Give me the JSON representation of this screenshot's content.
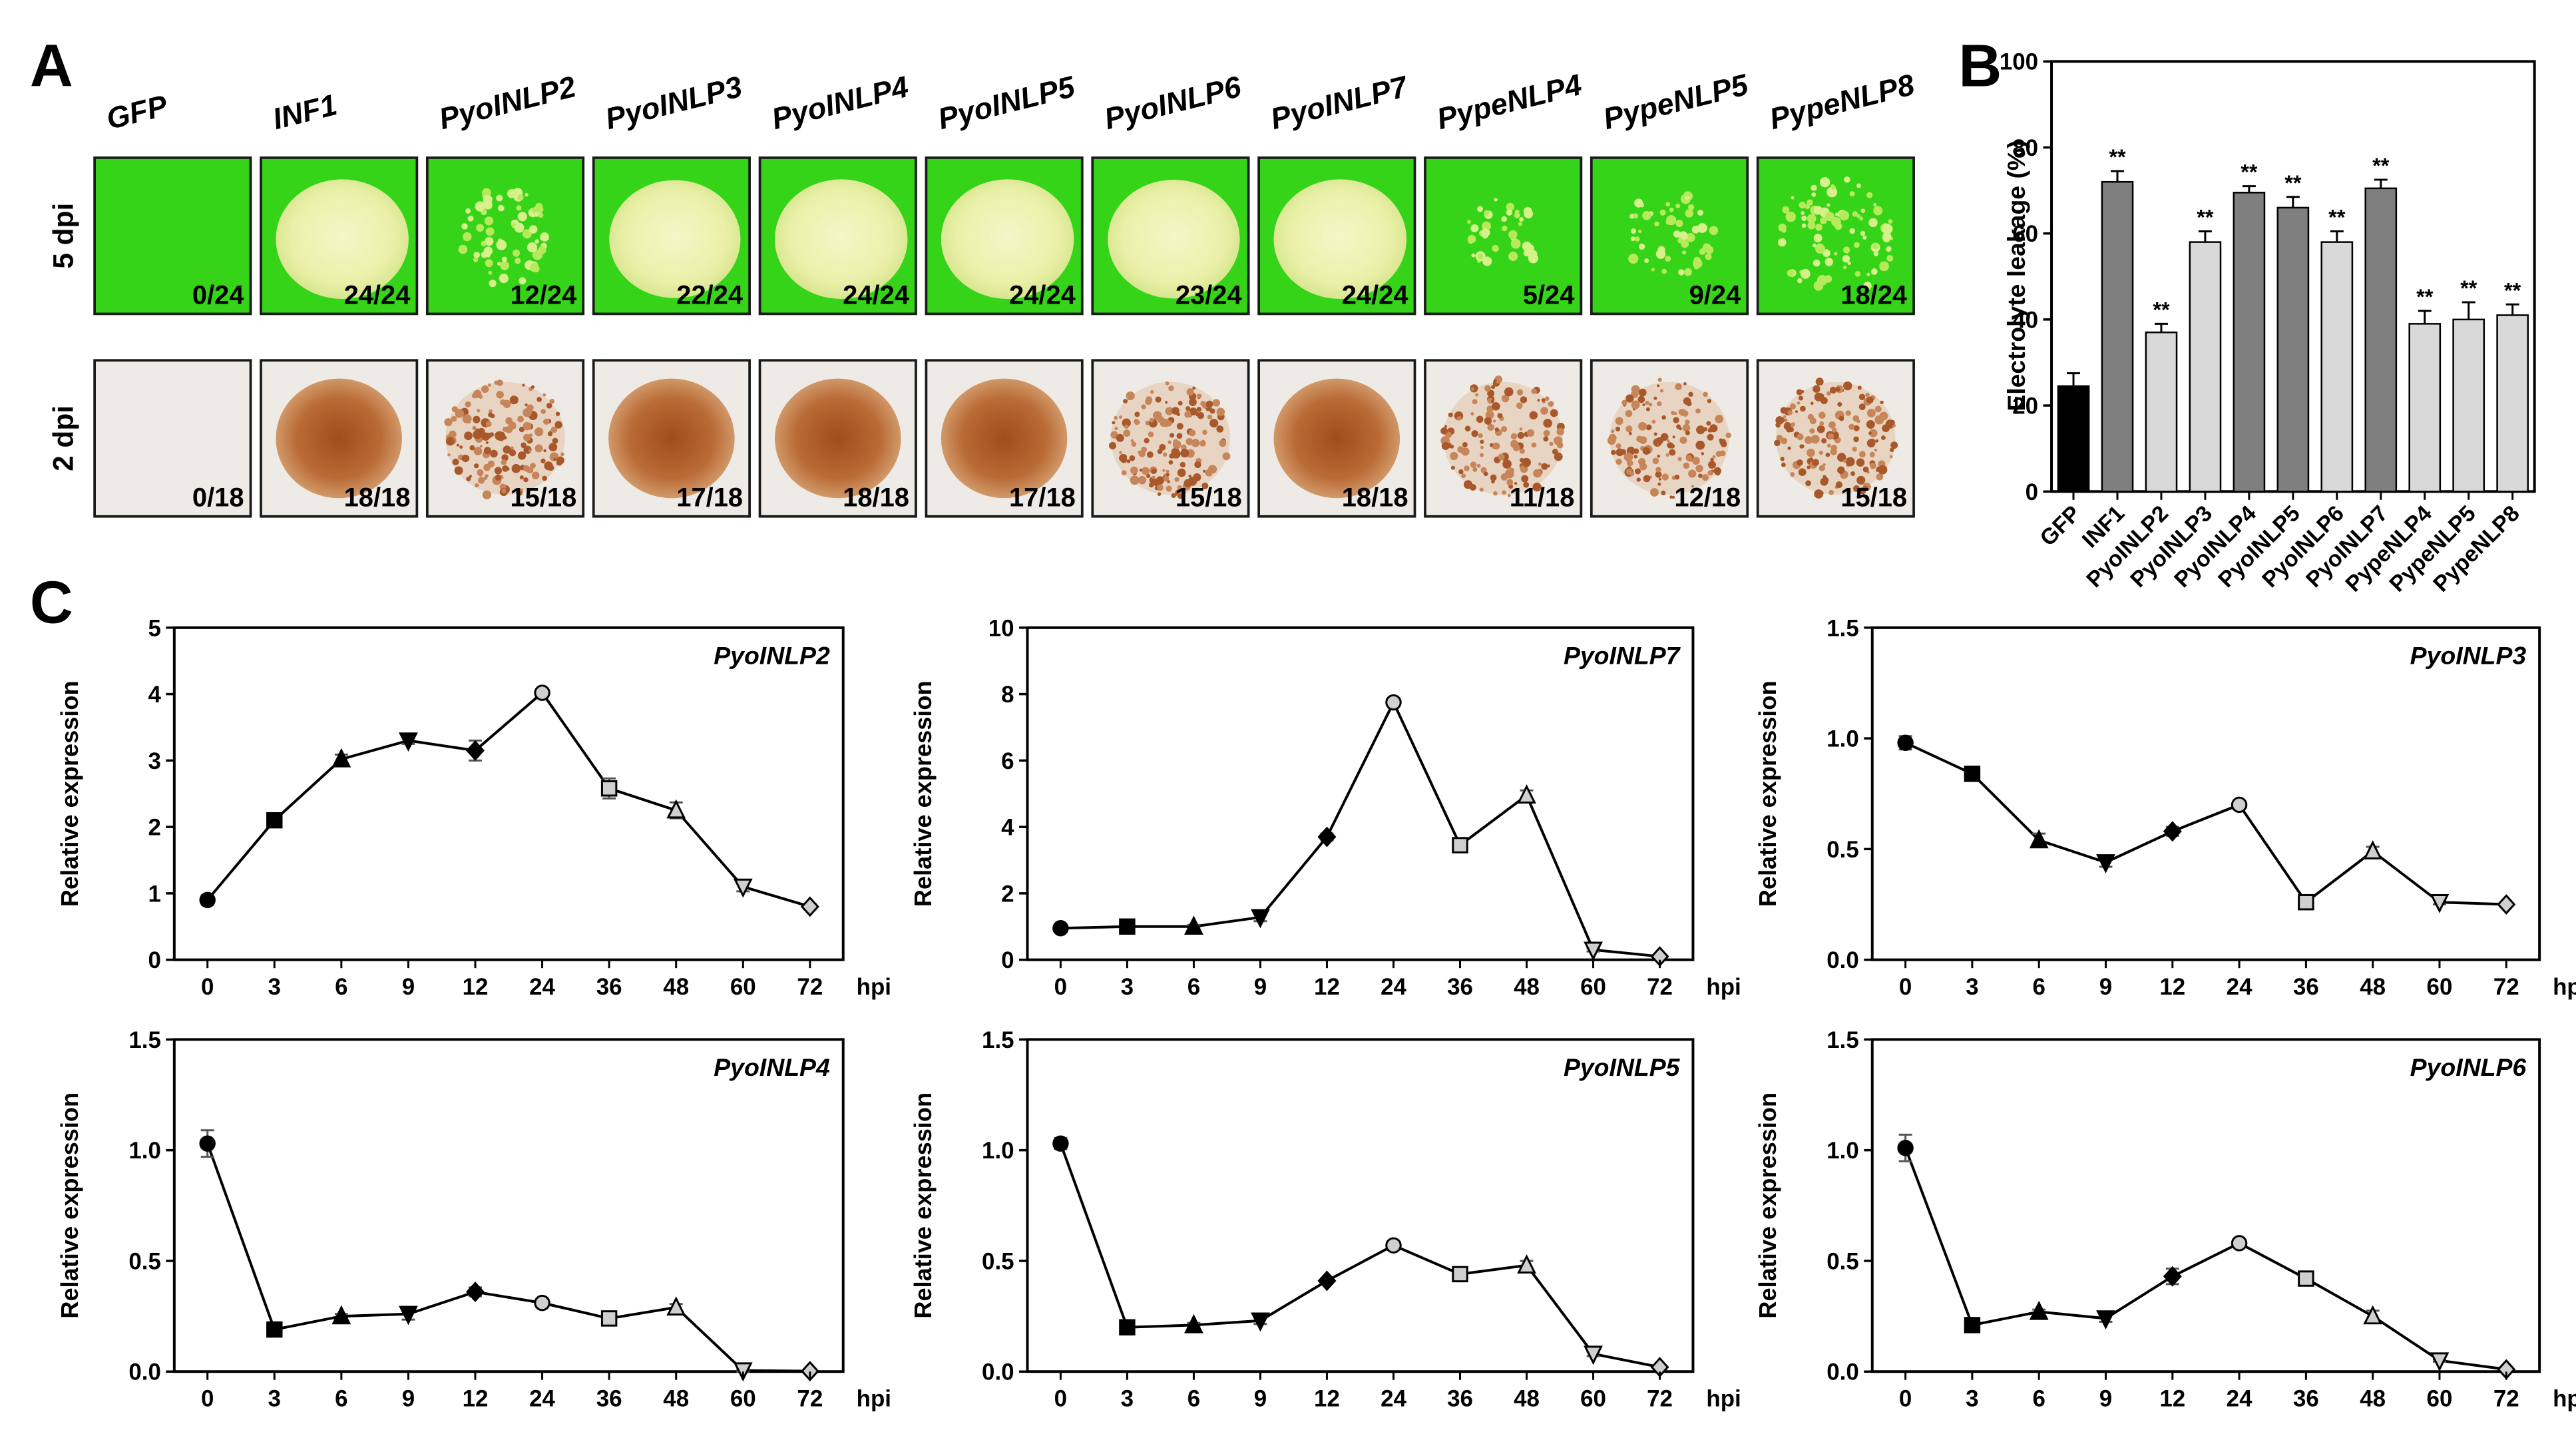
{
  "panel_labels": {
    "a": "A",
    "b": "B",
    "c": "C"
  },
  "panel_a": {
    "row_labels": [
      "5 dpi",
      "2 dpi"
    ],
    "columns": [
      {
        "name": "GFP",
        "dpi5_score": "0/24",
        "dpi5_necrosis": 0.0,
        "dpi2_score": "0/18",
        "dpi2_stain": 0.05
      },
      {
        "name": "INF1",
        "dpi5_score": "24/24",
        "dpi5_necrosis": 1.0,
        "dpi2_score": "18/18",
        "dpi2_stain": 1.0
      },
      {
        "name": "PyoINLP2",
        "dpi5_score": "12/24",
        "dpi5_necrosis": 0.5,
        "dpi2_score": "15/18",
        "dpi2_stain": 0.83
      },
      {
        "name": "PyoINLP3",
        "dpi5_score": "22/24",
        "dpi5_necrosis": 0.92,
        "dpi2_score": "17/18",
        "dpi2_stain": 0.94
      },
      {
        "name": "PyoINLP4",
        "dpi5_score": "24/24",
        "dpi5_necrosis": 1.0,
        "dpi2_score": "18/18",
        "dpi2_stain": 1.0
      },
      {
        "name": "PyoINLP5",
        "dpi5_score": "24/24",
        "dpi5_necrosis": 1.0,
        "dpi2_score": "17/18",
        "dpi2_stain": 0.94
      },
      {
        "name": "PyoINLP6",
        "dpi5_score": "23/24",
        "dpi5_necrosis": 0.96,
        "dpi2_score": "15/18",
        "dpi2_stain": 0.83
      },
      {
        "name": "PyoINLP7",
        "dpi5_score": "24/24",
        "dpi5_necrosis": 1.0,
        "dpi2_score": "18/18",
        "dpi2_stain": 1.0
      },
      {
        "name": "PypeNLP4",
        "dpi5_score": "5/24",
        "dpi5_necrosis": 0.21,
        "dpi2_score": "11/18",
        "dpi2_stain": 0.61
      },
      {
        "name": "PypeNLP5",
        "dpi5_score": "9/24",
        "dpi5_necrosis": 0.38,
        "dpi2_score": "12/18",
        "dpi2_stain": 0.67
      },
      {
        "name": "PypeNLP8",
        "dpi5_score": "18/24",
        "dpi5_necrosis": 0.75,
        "dpi2_score": "15/18",
        "dpi2_stain": 0.83
      }
    ]
  },
  "chart_data": [
    {
      "type": "bar",
      "id": "B",
      "ylabel": "Electrolyte leakage (%)",
      "ylim": [
        0,
        100
      ],
      "yticks": [
        "0",
        "20",
        "40",
        "60",
        "80",
        "100"
      ],
      "categories": [
        "GFP",
        "INF1",
        "PyoINLP2",
        "PyoINLP3",
        "PyoINLP4",
        "PyoINLP5",
        "PyoINLP6",
        "PyoINLP7",
        "PypeNLP4",
        "PypeNLP5",
        "PypeNLP8"
      ],
      "values": [
        24.5,
        72,
        37,
        58,
        69.5,
        66,
        58,
        70.5,
        39,
        40,
        41
      ],
      "errors": [
        3,
        2.5,
        2,
        2.5,
        1.5,
        2.5,
        2.5,
        2,
        3,
        4,
        2.5
      ],
      "significance": [
        "",
        "**",
        "**",
        "**",
        "**",
        "**",
        "**",
        "**",
        "**",
        "**",
        "**"
      ],
      "bar_colors": [
        "#000000",
        "#7f7f7f",
        "#d9d9d9",
        "#d9d9d9",
        "#7f7f7f",
        "#7f7f7f",
        "#d9d9d9",
        "#7f7f7f",
        "#d9d9d9",
        "#d9d9d9",
        "#d9d9d9"
      ]
    },
    {
      "type": "line",
      "id": "C1",
      "title": "PyoINLP2",
      "ylabel": "Relative expression",
      "xlabel": "hpi",
      "categories": [
        "0",
        "3",
        "6",
        "9",
        "12",
        "24",
        "36",
        "48",
        "60",
        "72"
      ],
      "values": [
        0.9,
        2.1,
        3.02,
        3.3,
        3.15,
        4.02,
        2.58,
        2.25,
        1.1,
        0.8
      ],
      "errors": [
        0.07,
        0.05,
        0.07,
        0.05,
        0.15,
        0.05,
        0.15,
        0.12,
        0.07,
        0.04
      ],
      "ylim": [
        0,
        5
      ],
      "yticks": [
        "0",
        "1",
        "2",
        "3",
        "4",
        "5"
      ]
    },
    {
      "type": "line",
      "id": "C2",
      "title": "PyoINLP7",
      "ylabel": "Relative expression",
      "xlabel": "hpi",
      "categories": [
        "0",
        "3",
        "6",
        "9",
        "12",
        "24",
        "36",
        "48",
        "60",
        "72"
      ],
      "values": [
        0.95,
        1.0,
        1.0,
        1.28,
        3.7,
        7.75,
        3.45,
        4.95,
        0.3,
        0.1
      ],
      "errors": [
        0.05,
        0.05,
        0.05,
        0.12,
        0.1,
        0.1,
        0.12,
        0.15,
        0.05,
        0.05
      ],
      "ylim": [
        0,
        10
      ],
      "yticks": [
        "0",
        "2",
        "4",
        "6",
        "8",
        "10"
      ]
    },
    {
      "type": "line",
      "id": "C3",
      "title": "PyoINLP3",
      "ylabel": "Relative expression",
      "xlabel": "hpi",
      "categories": [
        "0",
        "3",
        "6",
        "9",
        "12",
        "24",
        "36",
        "48",
        "60",
        "72"
      ],
      "values": [
        0.98,
        0.84,
        0.54,
        0.44,
        0.58,
        0.7,
        0.26,
        0.49,
        0.26,
        0.25
      ],
      "errors": [
        0.03,
        0.015,
        0.03,
        0.02,
        0.02,
        0.015,
        0.015,
        0.02,
        0.01,
        0.01
      ],
      "ylim": [
        0,
        1.5
      ],
      "yticks": [
        "0.0",
        "0.5",
        "1.0",
        "1.5"
      ]
    },
    {
      "type": "line",
      "id": "C4",
      "title": "PyoINLP4",
      "ylabel": "Relative expression",
      "xlabel": "hpi",
      "categories": [
        "0",
        "3",
        "6",
        "9",
        "12",
        "24",
        "36",
        "48",
        "60",
        "72"
      ],
      "values": [
        1.03,
        0.19,
        0.25,
        0.26,
        0.36,
        0.31,
        0.24,
        0.29,
        0.005,
        0.002
      ],
      "errors": [
        0.06,
        0.01,
        0.01,
        0.025,
        0.02,
        0.02,
        0.015,
        0.015,
        0.005,
        0.002
      ],
      "ylim": [
        0,
        1.5
      ],
      "yticks": [
        "0.0",
        "0.5",
        "1.0",
        "1.5"
      ]
    },
    {
      "type": "line",
      "id": "C5",
      "title": "PyoINLP5",
      "ylabel": "Relative expression",
      "xlabel": "hpi",
      "categories": [
        "0",
        "3",
        "6",
        "9",
        "12",
        "24",
        "36",
        "48",
        "60",
        "72"
      ],
      "values": [
        1.03,
        0.2,
        0.21,
        0.23,
        0.41,
        0.57,
        0.44,
        0.48,
        0.08,
        0.02
      ],
      "errors": [
        0.025,
        0.01,
        0.01,
        0.015,
        0.01,
        0.02,
        0.02,
        0.02,
        0.01,
        0.005
      ],
      "ylim": [
        0,
        1.5
      ],
      "yticks": [
        "0.0",
        "0.5",
        "1.0",
        "1.5"
      ]
    },
    {
      "type": "line",
      "id": "C6",
      "title": "PyoINLP6",
      "ylabel": "Relative expression",
      "xlabel": "hpi",
      "categories": [
        "0",
        "3",
        "6",
        "9",
        "12",
        "24",
        "36",
        "48",
        "60",
        "72"
      ],
      "values": [
        1.01,
        0.21,
        0.27,
        0.24,
        0.43,
        0.58,
        0.42,
        0.25,
        0.05,
        0.01
      ],
      "errors": [
        0.06,
        0.01,
        0.01,
        0.015,
        0.035,
        0.01,
        0.03,
        0.025,
        0.005,
        0.005
      ],
      "ylim": [
        0,
        1.5
      ],
      "yticks": [
        "0.0",
        "0.5",
        "1.0",
        "1.5"
      ]
    }
  ]
}
